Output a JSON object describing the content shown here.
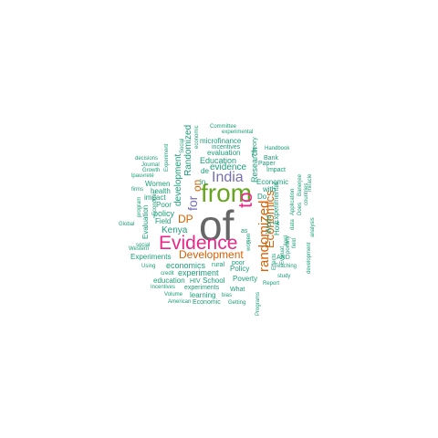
{
  "colors": {
    "background": "#ffffff",
    "teal": "#1b9e77",
    "orange": "#d95f02",
    "purple": "#7570b3",
    "magenta": "#e7298a",
    "green": "#66a61e",
    "gray": "#666666"
  },
  "words": [
    {
      "text": "of",
      "color": "gray",
      "weight": 48
    },
    {
      "text": "from",
      "color": "green",
      "weight": 28
    },
    {
      "text": "Evidence",
      "color": "magenta",
      "weight": 22
    },
    {
      "text": "to",
      "color": "magenta",
      "weight": 22
    },
    {
      "text": "India",
      "color": "purple",
      "weight": 17
    },
    {
      "text": "randomized",
      "color": "orange",
      "weight": 15
    },
    {
      "text": "for",
      "color": "purple",
      "weight": 15
    },
    {
      "text": "Development",
      "color": "orange",
      "weight": 12
    },
    {
      "text": "Economics",
      "color": "orange",
      "weight": 13
    },
    {
      "text": "DP",
      "color": "orange",
      "weight": 12
    },
    {
      "text": "on",
      "color": "orange",
      "weight": 12
    },
    {
      "text": "Randomized",
      "color": "teal",
      "weight": 10
    },
    {
      "text": "development",
      "color": "teal",
      "weight": 10
    },
    {
      "text": "evidence",
      "color": "teal",
      "weight": 10
    },
    {
      "text": "Education",
      "color": "teal",
      "weight": 10
    },
    {
      "text": "Kenya",
      "color": "teal",
      "weight": 10
    },
    {
      "text": "economics",
      "color": "teal",
      "weight": 9
    },
    {
      "text": "experiment",
      "color": "teal",
      "weight": 9
    },
    {
      "text": "policy",
      "color": "teal",
      "weight": 9
    },
    {
      "text": "Policy",
      "color": "teal",
      "weight": 8
    },
    {
      "text": "Economic",
      "color": "teal",
      "weight": 8
    },
    {
      "text": "Research",
      "color": "teal",
      "weight": 8
    },
    {
      "text": "Women",
      "color": "teal",
      "weight": 8
    },
    {
      "text": "impact",
      "color": "teal",
      "weight": 8
    },
    {
      "text": "Poor",
      "color": "teal",
      "weight": 8
    },
    {
      "text": "Field",
      "color": "teal",
      "weight": 8
    },
    {
      "text": "Experiments",
      "color": "teal",
      "weight": 7
    },
    {
      "text": "School",
      "color": "teal",
      "weight": 7
    },
    {
      "text": "Poverty",
      "color": "teal",
      "weight": 7
    },
    {
      "text": "education",
      "color": "teal",
      "weight": 7
    },
    {
      "text": "experiments",
      "color": "teal",
      "weight": 7
    },
    {
      "text": "learning",
      "color": "teal",
      "weight": 7
    },
    {
      "text": "evaluation",
      "color": "teal",
      "weight": 7
    },
    {
      "text": "microfinance",
      "color": "teal",
      "weight": 7
    },
    {
      "text": "health",
      "color": "teal",
      "weight": 7
    },
    {
      "text": "Evaluation",
      "color": "teal",
      "weight": 7
    },
    {
      "text": "with",
      "color": "teal",
      "weight": 7
    },
    {
      "text": "World",
      "color": "teal",
      "weight": 7
    },
    {
      "text": "How",
      "color": "teal",
      "weight": 7
    },
    {
      "text": "Experimental",
      "color": "teal",
      "weight": 7
    },
    {
      "text": "Do",
      "color": "teal",
      "weight": 7
    },
    {
      "text": "rural",
      "color": "teal",
      "weight": 7
    },
    {
      "text": "What",
      "color": "teal",
      "weight": 7
    },
    {
      "text": "Economic",
      "color": "teal",
      "weight": 7
    },
    {
      "text": "AND",
      "color": "teal",
      "weight": 6
    },
    {
      "text": "Impact",
      "color": "teal",
      "weight": 6
    },
    {
      "text": "Paper",
      "color": "teal",
      "weight": 6
    },
    {
      "text": "Bank",
      "color": "teal",
      "weight": 6
    },
    {
      "text": "Theory",
      "color": "teal",
      "weight": 6
    },
    {
      "text": "incentives",
      "color": "teal",
      "weight": 6
    },
    {
      "text": "de",
      "color": "teal",
      "weight": 6
    },
    {
      "text": "in",
      "color": "teal",
      "weight": 7
    },
    {
      "text": "as",
      "color": "teal",
      "weight": 6
    },
    {
      "text": "is",
      "color": "teal",
      "weight": 6
    },
    {
      "text": "poor",
      "color": "teal",
      "weight": 6
    },
    {
      "text": "HIV",
      "color": "teal",
      "weight": 6
    },
    {
      "text": "Using",
      "color": "teal",
      "weight": 6
    },
    {
      "text": "social",
      "color": "teal",
      "weight": 6
    },
    {
      "text": "Western",
      "color": "teal",
      "weight": 6
    },
    {
      "text": "credit",
      "color": "teal",
      "weight": 6
    },
    {
      "text": "Incentives",
      "color": "teal",
      "weight": 6
    },
    {
      "text": "Volume",
      "color": "teal",
      "weight": 6
    },
    {
      "text": "American",
      "color": "teal",
      "weight": 6
    },
    {
      "text": "bias",
      "color": "teal",
      "weight": 6
    },
    {
      "text": "Getting",
      "color": "teal",
      "weight": 6
    },
    {
      "text": "Report",
      "color": "teal",
      "weight": 6
    },
    {
      "text": "study",
      "color": "teal",
      "weight": 6
    },
    {
      "text": "Teaching",
      "color": "teal",
      "weight": 6
    },
    {
      "text": "Programs",
      "color": "teal",
      "weight": 6
    },
    {
      "text": "Global",
      "color": "teal",
      "weight": 6
    },
    {
      "text": "firms",
      "color": "teal",
      "weight": 6
    },
    {
      "text": "decisions",
      "color": "teal",
      "weight": 6
    },
    {
      "text": "Journal",
      "color": "teal",
      "weight": 6
    },
    {
      "text": "Growth",
      "color": "teal",
      "weight": 6
    },
    {
      "text": "lpauvreté",
      "color": "teal",
      "weight": 6
    },
    {
      "text": "Experiment",
      "color": "teal",
      "weight": 6
    },
    {
      "text": "Committee",
      "color": "teal",
      "weight": 6
    },
    {
      "text": "experimental",
      "color": "teal",
      "weight": 6
    },
    {
      "text": "Handbook",
      "color": "teal",
      "weight": 6
    },
    {
      "text": "Social",
      "color": "teal",
      "weight": 6
    },
    {
      "text": "economic",
      "color": "teal",
      "weight": 6
    },
    {
      "text": "program",
      "color": "teal",
      "weight": 6
    },
    {
      "text": "Economic",
      "color": "teal",
      "weight": 6
    },
    {
      "text": "women",
      "color": "teal",
      "weight": 6
    },
    {
      "text": "poverty",
      "color": "teal",
      "weight": 6
    },
    {
      "text": "field",
      "color": "teal",
      "weight": 6
    },
    {
      "text": "data",
      "color": "teal",
      "weight": 6
    },
    {
      "text": "Application",
      "color": "teal",
      "weight": 6
    },
    {
      "text": "analysis",
      "color": "teal",
      "weight": 6
    },
    {
      "text": "countries",
      "color": "teal",
      "weight": 6
    },
    {
      "text": "Does",
      "color": "teal",
      "weight": 6
    },
    {
      "text": "April",
      "color": "teal",
      "weight": 6
    },
    {
      "text": "Banerjee",
      "color": "teal",
      "weight": 6
    },
    {
      "text": "miracle",
      "color": "teal",
      "weight": 6
    },
    {
      "text": "development",
      "color": "teal",
      "weight": 6
    },
    {
      "text": "Effects",
      "color": "teal",
      "weight": 6
    },
    {
      "text": "Evaluat",
      "color": "teal",
      "weight": 6
    }
  ]
}
